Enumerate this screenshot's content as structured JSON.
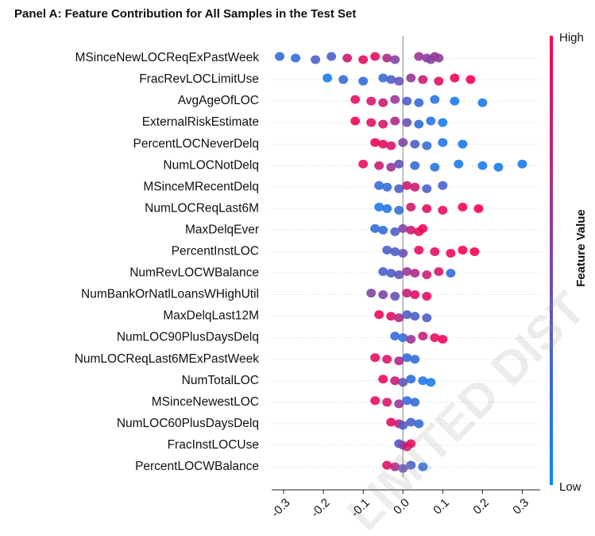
{
  "chart_data": {
    "type": "beeswarm",
    "title": "Panel A: Feature Contribution for All Samples in the Test Set",
    "colorbar_label": "Feature Value",
    "colorbar_high": "High",
    "colorbar_low": "Low",
    "colormap": [
      "#008afb",
      "#ff0052"
    ],
    "watermark": "LIMITED DIST",
    "xlim": [
      -0.33,
      0.345
    ],
    "xticks": [
      -0.3,
      -0.2,
      -0.1,
      {
        "value": 0,
        "label": "0.0"
      },
      0.1,
      0.2,
      0.3
    ],
    "series": [
      {
        "name": "MSinceNewLOCReqExPastWeek",
        "values": [
          -0.31,
          -0.27,
          -0.22,
          -0.18,
          -0.14,
          -0.1,
          -0.07,
          -0.04,
          -0.02,
          0.04,
          0.06,
          0.07,
          0.08,
          0.09
        ],
        "feature_values": [
          0.2,
          0.2,
          0.3,
          0.3,
          0.8,
          0.9,
          0.9,
          0.7,
          0.5,
          0.6,
          0.55,
          0.5,
          0.6,
          0.55
        ]
      },
      {
        "name": "FracRevLOCLimitUse",
        "values": [
          -0.19,
          -0.15,
          -0.1,
          -0.05,
          -0.03,
          -0.01,
          0.02,
          0.05,
          0.09,
          0.13,
          0.17
        ],
        "feature_values": [
          0.1,
          0.2,
          0.2,
          0.2,
          0.3,
          0.4,
          0.6,
          0.8,
          0.9,
          0.95,
          1
        ]
      },
      {
        "name": "AvgAgeOfLOC",
        "values": [
          -0.12,
          -0.08,
          -0.05,
          -0.02,
          0.01,
          0.04,
          0.08,
          0.13,
          0.2
        ],
        "feature_values": [
          0.9,
          0.85,
          0.8,
          0.6,
          0.3,
          0.2,
          0.15,
          0.1,
          0.1
        ]
      },
      {
        "name": "ExternalRiskEstimate",
        "values": [
          -0.12,
          -0.08,
          -0.05,
          -0.02,
          0.01,
          0.04,
          0.07,
          0.1
        ],
        "feature_values": [
          0.95,
          0.9,
          0.85,
          0.7,
          0.4,
          0.2,
          0.15,
          0.1
        ]
      },
      {
        "name": "PercentLOCNeverDelq",
        "values": [
          -0.07,
          -0.05,
          -0.03,
          0,
          0.03,
          0.06,
          0.1,
          0.15
        ],
        "feature_values": [
          0.95,
          0.9,
          0.85,
          0.5,
          0.3,
          0.2,
          0.15,
          0.1
        ]
      },
      {
        "name": "NumLOCNotDelq",
        "values": [
          -0.1,
          -0.06,
          -0.03,
          -0.01,
          0.03,
          0.08,
          0.14,
          0.2,
          0.24,
          0.3
        ],
        "feature_values": [
          0.9,
          0.8,
          0.6,
          0.4,
          0.2,
          0.15,
          0.1,
          0.1,
          0.1,
          0.1
        ]
      },
      {
        "name": "MSinceMRecentDelq",
        "values": [
          -0.06,
          -0.04,
          -0.01,
          0.01,
          0.03,
          0.06,
          0.1
        ],
        "feature_values": [
          0.2,
          0.2,
          0.3,
          0.8,
          0.8,
          0.3,
          0.3
        ]
      },
      {
        "name": "NumLOCReqLast6M",
        "values": [
          -0.06,
          -0.04,
          -0.01,
          0.02,
          0.06,
          0.1,
          0.15,
          0.19
        ],
        "feature_values": [
          0.1,
          0.15,
          0.2,
          0.8,
          0.9,
          0.9,
          0.95,
          1
        ]
      },
      {
        "name": "MaxDelqEver",
        "values": [
          -0.07,
          -0.05,
          -0.02,
          0,
          0.02,
          0.04,
          0.05
        ],
        "feature_values": [
          0.2,
          0.2,
          0.3,
          0.5,
          0.8,
          0.9,
          0.95
        ]
      },
      {
        "name": "PercentInstLOC",
        "values": [
          -0.04,
          -0.02,
          0,
          0.04,
          0.08,
          0.12,
          0.15,
          0.18
        ],
        "feature_values": [
          0.3,
          0.3,
          0.4,
          0.9,
          0.9,
          0.95,
          1,
          1
        ]
      },
      {
        "name": "NumRevLOCWBalance",
        "values": [
          -0.05,
          -0.03,
          -0.01,
          0.01,
          0.03,
          0.06,
          0.09,
          0.12
        ],
        "feature_values": [
          0.3,
          0.3,
          0.4,
          0.6,
          0.7,
          0.8,
          0.85,
          0.2
        ]
      },
      {
        "name": "NumBankOrNatlLoansWHighUtil",
        "values": [
          -0.08,
          -0.05,
          -0.02,
          0.01,
          0.03,
          0.06
        ],
        "feature_values": [
          0.5,
          0.5,
          0.4,
          0.8,
          0.9,
          0.9
        ]
      },
      {
        "name": "MaxDelqLast12M",
        "values": [
          -0.06,
          -0.03,
          -0.01,
          0.01,
          0.03,
          0.06
        ],
        "feature_values": [
          0.95,
          0.9,
          0.7,
          0.3,
          0.3,
          0.3
        ]
      },
      {
        "name": "NumLOC90PlusDaysDelq",
        "values": [
          -0.02,
          0,
          0.02,
          0.05,
          0.08,
          0.1
        ],
        "feature_values": [
          0.2,
          0.2,
          0.6,
          0.8,
          0.9,
          0.95
        ]
      },
      {
        "name": "NumLOCReqLast6MExPastWeek",
        "values": [
          -0.07,
          -0.04,
          -0.01,
          0.01,
          0.03
        ],
        "feature_values": [
          0.9,
          0.85,
          0.7,
          0.2,
          0.2
        ]
      },
      {
        "name": "NumTotalLOC",
        "values": [
          -0.05,
          -0.02,
          0,
          0.02,
          0.05,
          0.07
        ],
        "feature_values": [
          0.9,
          0.8,
          0.4,
          0.2,
          0.15,
          0.1
        ]
      },
      {
        "name": "MSinceNewestLOC",
        "values": [
          -0.07,
          -0.04,
          -0.01,
          0.01,
          0.03
        ],
        "feature_values": [
          0.9,
          0.85,
          0.6,
          0.2,
          0.2
        ]
      },
      {
        "name": "NumLOC60PlusDaysDelq",
        "values": [
          -0.03,
          -0.01,
          0,
          0.02,
          0.04
        ],
        "feature_values": [
          0.9,
          0.8,
          0.3,
          0.3,
          0.2
        ]
      },
      {
        "name": "FracInstLOCUse",
        "values": [
          -0.01,
          0,
          0.01,
          0.02
        ],
        "feature_values": [
          0.3,
          0.5,
          0.8,
          0.9
        ]
      },
      {
        "name": "PercentLOCWBalance",
        "values": [
          -0.04,
          -0.02,
          0,
          0.02,
          0.05
        ],
        "feature_values": [
          0.9,
          0.7,
          0.4,
          0.3,
          0.2
        ]
      }
    ]
  }
}
